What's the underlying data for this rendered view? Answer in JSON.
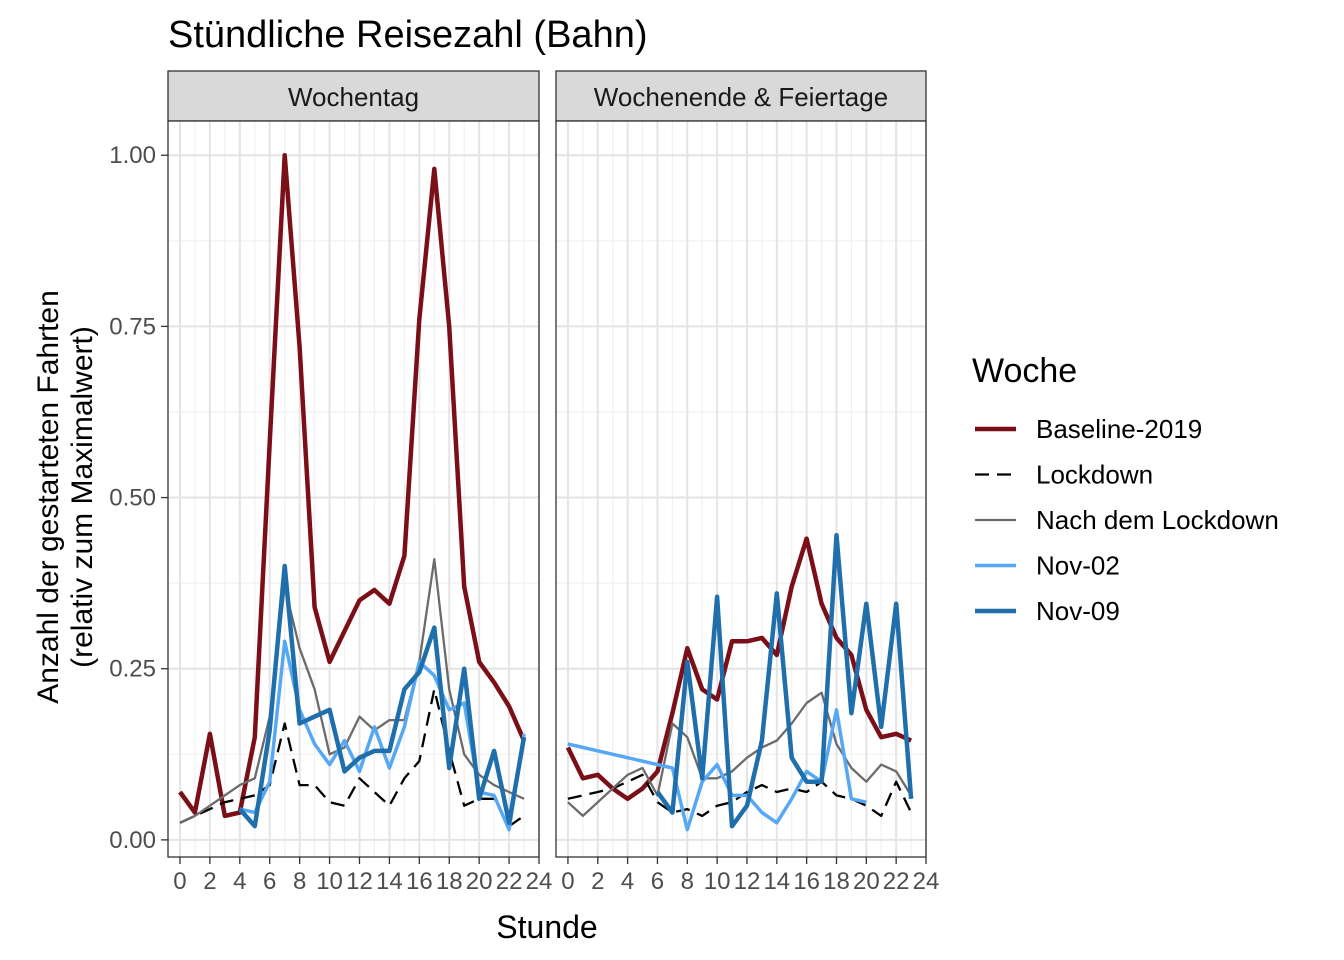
{
  "chart_data": {
    "type": "line",
    "title": "Stündliche Reisezahl (Bahn)",
    "xlabel": "Stunde",
    "ylabel_line1": "Anzahl der gestarteten Fahrten",
    "ylabel_line2": "(relativ zum Maximalwert)",
    "xlim": [
      -0.8,
      24
    ],
    "ylim": [
      -0.025,
      1.05
    ],
    "x_ticks": [
      0,
      2,
      4,
      6,
      8,
      10,
      12,
      14,
      16,
      18,
      20,
      22,
      24
    ],
    "x_tick_labels": [
      "0",
      "2",
      "4",
      "6",
      "8",
      "10",
      "12",
      "14",
      "16",
      "18",
      "20",
      "22",
      "24"
    ],
    "y_ticks": [
      0,
      0.25,
      0.5,
      0.75,
      1.0
    ],
    "y_tick_labels": [
      "0.00",
      "0.25",
      "0.50",
      "0.75",
      "1.00"
    ],
    "grid": true,
    "legend": {
      "title": "Woche",
      "placement": "right",
      "entries": [
        "Baseline-2019",
        "Lockdown",
        "Nach dem Lockdown",
        "Nov-02",
        "Nov-09"
      ]
    },
    "series_styles": [
      {
        "color": "#7b0f18",
        "width": 4.5,
        "dash": "none"
      },
      {
        "color": "#000000",
        "width": 2.3,
        "dash": "14,8"
      },
      {
        "color": "#6b6b6b",
        "width": 2.3,
        "dash": "none"
      },
      {
        "color": "#56a8f5",
        "width": 3.5,
        "dash": "none"
      },
      {
        "color": "#1f6fad",
        "width": 4.5,
        "dash": "none"
      }
    ],
    "panels": [
      {
        "strip": "Wochentag",
        "series": [
          {
            "name": "Baseline-2019",
            "x": [
              0,
              1,
              2,
              3,
              4,
              5,
              6,
              7,
              8,
              9,
              10,
              11,
              12,
              13,
              14,
              15,
              16,
              17,
              18,
              19,
              20,
              21,
              22,
              23
            ],
            "y": [
              0.07,
              0.04,
              0.155,
              0.035,
              0.04,
              0.15,
              0.58,
              1.0,
              0.72,
              0.34,
              0.26,
              0.305,
              0.35,
              0.365,
              0.345,
              0.415,
              0.76,
              0.98,
              0.75,
              0.37,
              0.26,
              0.23,
              0.195,
              0.145
            ]
          },
          {
            "name": "Lockdown",
            "x": [
              0,
              1,
              2,
              3,
              4,
              5,
              6,
              7,
              8,
              9,
              10,
              11,
              12,
              13,
              14,
              15,
              16,
              17,
              18,
              19,
              20,
              21,
              22,
              23
            ],
            "y": [
              0.025,
              0.035,
              0.045,
              0.055,
              0.06,
              0.065,
              0.08,
              0.17,
              0.08,
              0.08,
              0.055,
              0.05,
              0.09,
              0.07,
              0.05,
              0.09,
              0.115,
              0.22,
              0.13,
              0.05,
              0.06,
              0.06,
              0.02,
              0.035
            ]
          },
          {
            "name": "Nach dem Lockdown",
            "x": [
              0,
              1,
              2,
              3,
              4,
              5,
              6,
              7,
              8,
              9,
              10,
              11,
              12,
              13,
              14,
              15,
              16,
              17,
              18,
              19,
              20,
              21,
              22,
              23
            ],
            "y": [
              0.025,
              0.035,
              0.05,
              0.065,
              0.08,
              0.09,
              0.18,
              0.37,
              0.28,
              0.22,
              0.125,
              0.135,
              0.18,
              0.16,
              0.175,
              0.175,
              0.26,
              0.41,
              0.22,
              0.125,
              0.095,
              0.08,
              0.07,
              0.06
            ]
          },
          {
            "name": "Nov-02",
            "x": [
              4,
              5,
              6,
              7,
              8,
              9,
              10,
              11,
              12,
              13,
              14,
              15,
              16,
              17,
              18,
              19,
              20,
              21,
              22,
              23
            ],
            "y": [
              0.045,
              0.04,
              0.085,
              0.29,
              0.19,
              0.14,
              0.11,
              0.145,
              0.1,
              0.165,
              0.105,
              0.165,
              0.26,
              0.24,
              0.19,
              0.2,
              0.07,
              0.065,
              0.015,
              0.155
            ]
          },
          {
            "name": "Nov-09",
            "x": [
              4,
              5,
              6,
              7,
              8,
              9,
              10,
              11,
              12,
              13,
              14,
              15,
              16,
              17,
              18,
              19,
              20,
              21,
              22,
              23
            ],
            "y": [
              0.045,
              0.02,
              0.16,
              0.4,
              0.17,
              0.18,
              0.19,
              0.1,
              0.12,
              0.13,
              0.13,
              0.22,
              0.245,
              0.31,
              0.105,
              0.25,
              0.06,
              0.13,
              0.025,
              0.15
            ]
          }
        ]
      },
      {
        "strip": "Wochenende & Feiertage",
        "series": [
          {
            "name": "Baseline-2019",
            "x": [
              0,
              1,
              2,
              3,
              4,
              5,
              6,
              7,
              8,
              9,
              10,
              11,
              12,
              13,
              14,
              15,
              16,
              17,
              18,
              19,
              20,
              21,
              22,
              23
            ],
            "y": [
              0.135,
              0.09,
              0.095,
              0.075,
              0.06,
              0.075,
              0.1,
              0.185,
              0.28,
              0.22,
              0.205,
              0.29,
              0.29,
              0.295,
              0.27,
              0.37,
              0.44,
              0.345,
              0.295,
              0.27,
              0.19,
              0.15,
              0.155,
              0.145
            ]
          },
          {
            "name": "Lockdown",
            "x": [
              0,
              1,
              2,
              3,
              4,
              5,
              6,
              7,
              8,
              9,
              10,
              11,
              12,
              13,
              14,
              15,
              16,
              17,
              18,
              19,
              20,
              21,
              22,
              23
            ],
            "y": [
              0.06,
              0.065,
              0.07,
              0.075,
              0.085,
              0.095,
              0.055,
              0.04,
              0.045,
              0.035,
              0.05,
              0.055,
              0.07,
              0.08,
              0.07,
              0.075,
              0.07,
              0.085,
              0.065,
              0.06,
              0.05,
              0.035,
              0.085,
              0.04
            ]
          },
          {
            "name": "Nach dem Lockdown",
            "x": [
              0,
              1,
              2,
              3,
              4,
              5,
              6,
              7,
              8,
              9,
              10,
              11,
              12,
              13,
              14,
              15,
              16,
              17,
              18,
              19,
              20,
              21,
              22,
              23
            ],
            "y": [
              0.055,
              0.035,
              0.055,
              0.075,
              0.095,
              0.105,
              0.065,
              0.17,
              0.15,
              0.09,
              0.09,
              0.1,
              0.12,
              0.135,
              0.145,
              0.17,
              0.2,
              0.215,
              0.14,
              0.105,
              0.085,
              0.11,
              0.1,
              0.065
            ]
          },
          {
            "name": "Nov-02",
            "x": [
              0,
              7,
              8,
              9,
              10,
              11,
              12,
              13,
              14,
              15,
              16,
              17,
              18,
              19,
              20
            ],
            "y": [
              0.14,
              0.105,
              0.015,
              0.085,
              0.11,
              0.065,
              0.065,
              0.04,
              0.025,
              0.06,
              0.1,
              0.085,
              0.19,
              0.06,
              0.055
            ]
          },
          {
            "name": "Nov-09",
            "x": [
              6,
              7,
              8,
              9,
              10,
              11,
              12,
              13,
              14,
              15,
              16,
              17,
              18,
              19,
              20,
              21,
              22,
              23
            ],
            "y": [
              0.07,
              0.04,
              0.26,
              0.09,
              0.355,
              0.02,
              0.05,
              0.145,
              0.36,
              0.12,
              0.085,
              0.085,
              0.445,
              0.185,
              0.345,
              0.165,
              0.345,
              0.06
            ]
          }
        ]
      }
    ]
  }
}
